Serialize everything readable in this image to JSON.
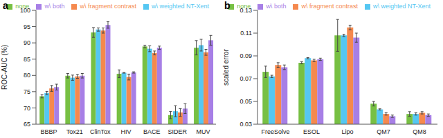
{
  "chart_data": [
    {
      "type": "bar",
      "title": "a",
      "y_label": "ROC-AUC (%)",
      "categories": [
        "BBBP",
        "Tox21",
        "ClinTox",
        "HIV",
        "BACE",
        "SIDER",
        "MUV"
      ],
      "ylim": [
        65,
        100
      ],
      "yticks": [
        65,
        70,
        75,
        80,
        85,
        90,
        95,
        100
      ],
      "grid": false,
      "legend": "top",
      "series": [
        {
          "name": "none",
          "color": "#77c043",
          "values": [
            73.6,
            79.9,
            93.2,
            80.5,
            88.9,
            67.8,
            88.5
          ],
          "errors": [
            0.5,
            0.7,
            1.5,
            1.2,
            0.4,
            1.1,
            2.2
          ]
        },
        {
          "name": "w\\ weighted NT-Xent",
          "color": "#55c7f2",
          "values": [
            74.6,
            79.3,
            94.1,
            80.8,
            88.2,
            69.0,
            89.3
          ],
          "errors": [
            0.5,
            0.8,
            0.5,
            0.1,
            0.9,
            1.7,
            1.8
          ]
        },
        {
          "name": "w\\ fragment contrast",
          "color": "#f5894e",
          "values": [
            76.0,
            79.7,
            93.8,
            79.5,
            86.9,
            68.6,
            87.1
          ],
          "errors": [
            0.9,
            0.6,
            0.8,
            0.9,
            0.6,
            1.2,
            0.9
          ]
        },
        {
          "name": "w\\ both",
          "color": "#a77fe6",
          "values": [
            76.4,
            79.9,
            95.5,
            80.9,
            88.5,
            69.8,
            90.8
          ],
          "errors": [
            0.9,
            0.7,
            1.0,
            0.2,
            0.5,
            1.5,
            1.5
          ]
        }
      ]
    },
    {
      "type": "bar",
      "title": "b",
      "y_label": "scaled error",
      "categories": [
        "FreeSolve",
        "ESOL",
        "Lipo",
        "QM7",
        "QM8"
      ],
      "ylim": [
        0.03,
        0.13
      ],
      "yticks": [
        0.03,
        0.05,
        0.07,
        0.09,
        0.11,
        0.13
      ],
      "grid": false,
      "legend": "top",
      "series": [
        {
          "name": "none",
          "color": "#77c043",
          "values": [
            0.076,
            0.084,
            0.108,
            0.048,
            0.039
          ],
          "errors": [
            0.005,
            0.001,
            0.014,
            0.002,
            0.002
          ]
        },
        {
          "name": "w\\ weighted NT-Xent",
          "color": "#55c7f2",
          "values": [
            0.072,
            0.088,
            0.108,
            0.043,
            0.039
          ],
          "errors": [
            0.001,
            0.0005,
            0.001,
            0.0005,
            0.001
          ]
        },
        {
          "name": "w\\ fragment contrast",
          "color": "#f5894e",
          "values": [
            0.082,
            0.086,
            0.115,
            0.039,
            0.04
          ],
          "errors": [
            0.002,
            0.001,
            0.002,
            0.001,
            0.001
          ]
        },
        {
          "name": "w\\ both",
          "color": "#a77fe6",
          "values": [
            0.08,
            0.087,
            0.106,
            0.037,
            0.038
          ],
          "errors": [
            0.002,
            0.001,
            0.004,
            0.001,
            0.001
          ]
        }
      ]
    }
  ]
}
